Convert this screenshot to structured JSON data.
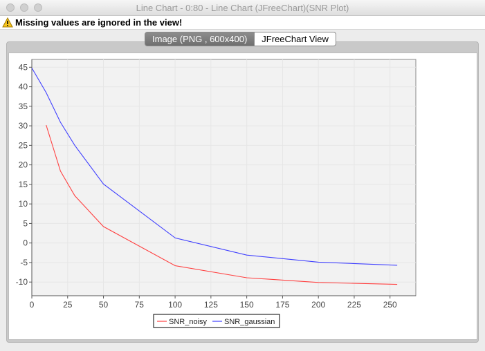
{
  "window": {
    "title": "Line Chart - 0:80 - Line Chart (JFreeChart)(SNR Plot)"
  },
  "warning": {
    "text": "Missing values are ignored in the view!"
  },
  "tabs": [
    {
      "label": "Image (PNG , 600x400)",
      "selected": true
    },
    {
      "label": "JFreeChart View",
      "selected": false
    }
  ],
  "colors": {
    "noisy": "#ff4040",
    "gaussian": "#4040ff",
    "plot_bg": "#f2f2f2"
  },
  "chart_data": {
    "type": "line",
    "title": "",
    "xlabel": "",
    "ylabel": "",
    "xlim": [
      0,
      268
    ],
    "ylim": [
      -13.5,
      47
    ],
    "xticks": [
      0,
      25,
      50,
      75,
      100,
      125,
      150,
      175,
      200,
      225,
      250
    ],
    "yticks": [
      -10,
      -5,
      0,
      5,
      10,
      15,
      20,
      25,
      30,
      35,
      40,
      45
    ],
    "grid": true,
    "legend": "bottom",
    "series": [
      {
        "name": "SNR_noisy",
        "x": [
          10,
          20,
          30,
          50,
          100,
          150,
          200,
          255
        ],
        "y": [
          30.2,
          18.4,
          12.1,
          4.2,
          -5.8,
          -8.9,
          -10.1,
          -10.6
        ]
      },
      {
        "name": "SNR_gaussian",
        "x": [
          0,
          10,
          20,
          30,
          50,
          100,
          150,
          200,
          255
        ],
        "y": [
          44.8,
          38.5,
          30.9,
          25.0,
          15.1,
          1.3,
          -3.1,
          -4.9,
          -5.7
        ]
      }
    ]
  }
}
